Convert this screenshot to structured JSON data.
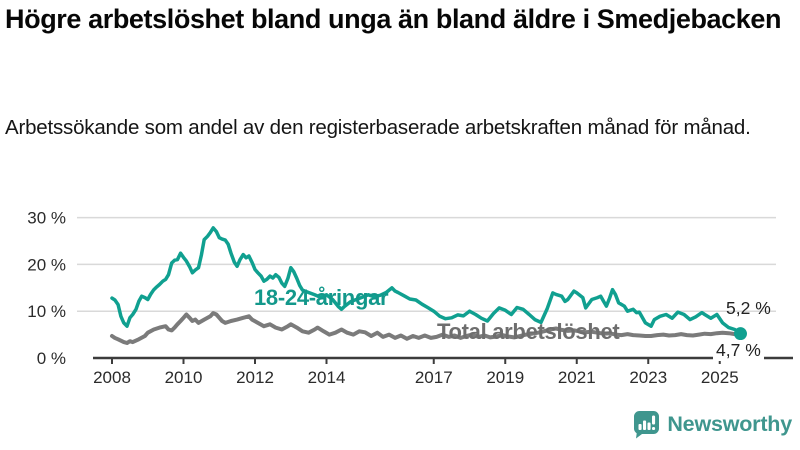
{
  "chart_data": {
    "type": "line",
    "title": "Högre arbetslöshet bland unga än bland äldre i Smedjebacken",
    "subtitle": "Arbetssökande som andel av den registerbaserade arbetskraften månad för månad.",
    "unit": "%",
    "xlim": [
      2008,
      2025.7
    ],
    "ylim": [
      0,
      30
    ],
    "grid": true,
    "legend": "inline-labels-on-chart",
    "x_ticks": [
      {
        "v": 2008,
        "label": "2008"
      },
      {
        "v": 2010,
        "label": "2010"
      },
      {
        "v": 2012,
        "label": "2012"
      },
      {
        "v": 2014,
        "label": "2014"
      },
      {
        "v": 2017,
        "label": "2017"
      },
      {
        "v": 2019,
        "label": "2019"
      },
      {
        "v": 2021,
        "label": "2021"
      },
      {
        "v": 2023,
        "label": "2023"
      },
      {
        "v": 2025,
        "label": "2025"
      }
    ],
    "y_ticks": [
      {
        "v": 0,
        "label": "0 %"
      },
      {
        "v": 10,
        "label": "10 %"
      },
      {
        "v": 20,
        "label": "20 %"
      },
      {
        "v": 30,
        "label": "30 %"
      }
    ],
    "colors": {
      "grid": "#d9d9d9",
      "axis": "#3c3c3c",
      "tick_label": "#2b2b2b"
    },
    "series": [
      {
        "name": "18-24-åringar",
        "color": "#10a090",
        "width": 3.5,
        "end_label": "5,2 %",
        "end_value": 5.2,
        "end_dot": true,
        "points": [
          [
            2008.0,
            12.8
          ],
          [
            2008.08,
            12.4
          ],
          [
            2008.17,
            11.4
          ],
          [
            2008.25,
            8.9
          ],
          [
            2008.33,
            7.5
          ],
          [
            2008.42,
            6.8
          ],
          [
            2008.5,
            8.6
          ],
          [
            2008.58,
            9.3
          ],
          [
            2008.67,
            10.4
          ],
          [
            2008.75,
            12.1
          ],
          [
            2008.83,
            13.2
          ],
          [
            2008.92,
            12.9
          ],
          [
            2009.0,
            12.5
          ],
          [
            2009.08,
            13.6
          ],
          [
            2009.17,
            14.6
          ],
          [
            2009.25,
            15.2
          ],
          [
            2009.33,
            15.7
          ],
          [
            2009.42,
            16.4
          ],
          [
            2009.5,
            16.8
          ],
          [
            2009.58,
            17.8
          ],
          [
            2009.67,
            20.3
          ],
          [
            2009.75,
            20.9
          ],
          [
            2009.83,
            21.0
          ],
          [
            2009.92,
            22.4
          ],
          [
            2010.0,
            21.5
          ],
          [
            2010.08,
            20.7
          ],
          [
            2010.17,
            19.5
          ],
          [
            2010.25,
            18.2
          ],
          [
            2010.33,
            18.8
          ],
          [
            2010.42,
            19.3
          ],
          [
            2010.5,
            22.0
          ],
          [
            2010.58,
            25.3
          ],
          [
            2010.67,
            26.0
          ],
          [
            2010.75,
            26.8
          ],
          [
            2010.83,
            27.8
          ],
          [
            2010.92,
            27.0
          ],
          [
            2011.0,
            25.7
          ],
          [
            2011.08,
            25.4
          ],
          [
            2011.17,
            25.2
          ],
          [
            2011.25,
            24.3
          ],
          [
            2011.33,
            22.4
          ],
          [
            2011.42,
            20.5
          ],
          [
            2011.5,
            19.6
          ],
          [
            2011.58,
            21.0
          ],
          [
            2011.67,
            22.1
          ],
          [
            2011.75,
            21.4
          ],
          [
            2011.83,
            21.8
          ],
          [
            2011.92,
            20.4
          ],
          [
            2012.0,
            18.9
          ],
          [
            2012.08,
            18.2
          ],
          [
            2012.17,
            17.5
          ],
          [
            2012.25,
            16.4
          ],
          [
            2012.33,
            16.8
          ],
          [
            2012.42,
            17.5
          ],
          [
            2012.5,
            17.1
          ],
          [
            2012.58,
            17.8
          ],
          [
            2012.67,
            17.2
          ],
          [
            2012.75,
            16.0
          ],
          [
            2012.83,
            15.3
          ],
          [
            2012.92,
            17.0
          ],
          [
            2013.0,
            19.3
          ],
          [
            2013.08,
            18.5
          ],
          [
            2013.17,
            17.0
          ],
          [
            2013.25,
            15.5
          ],
          [
            2013.33,
            14.5
          ],
          [
            2013.5,
            14.0
          ],
          [
            2013.67,
            13.5
          ],
          [
            2013.83,
            13.0
          ],
          [
            2014.0,
            13.5
          ],
          [
            2014.17,
            12.5
          ],
          [
            2014.33,
            11.0
          ],
          [
            2014.42,
            10.4
          ],
          [
            2014.5,
            11.0
          ],
          [
            2014.67,
            12.0
          ],
          [
            2014.83,
            12.5
          ],
          [
            2015.0,
            13.0
          ],
          [
            2015.17,
            13.5
          ],
          [
            2015.33,
            13.1
          ],
          [
            2015.5,
            13.4
          ],
          [
            2015.67,
            14.0
          ],
          [
            2015.83,
            15.0
          ],
          [
            2015.92,
            14.3
          ],
          [
            2016.0,
            14.0
          ],
          [
            2016.17,
            13.3
          ],
          [
            2016.33,
            12.6
          ],
          [
            2016.5,
            12.4
          ],
          [
            2016.67,
            11.5
          ],
          [
            2016.83,
            10.8
          ],
          [
            2017.0,
            10.0
          ],
          [
            2017.17,
            8.9
          ],
          [
            2017.33,
            8.4
          ],
          [
            2017.5,
            8.6
          ],
          [
            2017.67,
            9.2
          ],
          [
            2017.83,
            9.0
          ],
          [
            2018.0,
            10.0
          ],
          [
            2018.17,
            9.3
          ],
          [
            2018.33,
            8.5
          ],
          [
            2018.5,
            7.9
          ],
          [
            2018.67,
            9.5
          ],
          [
            2018.83,
            10.7
          ],
          [
            2019.0,
            10.2
          ],
          [
            2019.17,
            9.3
          ],
          [
            2019.33,
            10.8
          ],
          [
            2019.5,
            10.4
          ],
          [
            2019.67,
            9.3
          ],
          [
            2019.83,
            8.2
          ],
          [
            2020.0,
            7.6
          ],
          [
            2020.17,
            10.5
          ],
          [
            2020.33,
            13.9
          ],
          [
            2020.42,
            13.6
          ],
          [
            2020.58,
            13.2
          ],
          [
            2020.67,
            12.1
          ],
          [
            2020.75,
            12.5
          ],
          [
            2020.92,
            14.3
          ],
          [
            2021.0,
            13.9
          ],
          [
            2021.17,
            12.9
          ],
          [
            2021.25,
            10.7
          ],
          [
            2021.42,
            12.5
          ],
          [
            2021.58,
            12.9
          ],
          [
            2021.67,
            13.2
          ],
          [
            2021.75,
            12.1
          ],
          [
            2021.83,
            11.1
          ],
          [
            2021.92,
            12.8
          ],
          [
            2022.0,
            14.6
          ],
          [
            2022.08,
            13.6
          ],
          [
            2022.17,
            11.8
          ],
          [
            2022.33,
            11.1
          ],
          [
            2022.42,
            10.0
          ],
          [
            2022.58,
            10.4
          ],
          [
            2022.67,
            9.7
          ],
          [
            2022.75,
            9.8
          ],
          [
            2022.92,
            7.5
          ],
          [
            2023.08,
            6.8
          ],
          [
            2023.17,
            8.2
          ],
          [
            2023.33,
            8.9
          ],
          [
            2023.5,
            9.3
          ],
          [
            2023.67,
            8.5
          ],
          [
            2023.83,
            9.8
          ],
          [
            2024.0,
            9.3
          ],
          [
            2024.17,
            8.2
          ],
          [
            2024.33,
            8.8
          ],
          [
            2024.5,
            9.7
          ],
          [
            2024.58,
            9.3
          ],
          [
            2024.75,
            8.5
          ],
          [
            2024.92,
            9.3
          ],
          [
            2025.08,
            7.5
          ],
          [
            2025.25,
            6.5
          ],
          [
            2025.42,
            6.1
          ],
          [
            2025.58,
            5.2
          ]
        ]
      },
      {
        "name": "Total arbetslöshet",
        "color": "#7b7b7b",
        "width": 4,
        "end_label": "4,7 %",
        "end_value": 4.7,
        "end_dot": false,
        "points": [
          [
            2008.0,
            4.7
          ],
          [
            2008.08,
            4.3
          ],
          [
            2008.17,
            4.0
          ],
          [
            2008.33,
            3.4
          ],
          [
            2008.42,
            3.2
          ],
          [
            2008.5,
            3.6
          ],
          [
            2008.58,
            3.4
          ],
          [
            2008.75,
            4.0
          ],
          [
            2008.92,
            4.7
          ],
          [
            2009.0,
            5.4
          ],
          [
            2009.17,
            6.1
          ],
          [
            2009.33,
            6.5
          ],
          [
            2009.5,
            6.8
          ],
          [
            2009.58,
            6.1
          ],
          [
            2009.67,
            5.9
          ],
          [
            2009.75,
            6.5
          ],
          [
            2009.83,
            7.2
          ],
          [
            2009.92,
            7.9
          ],
          [
            2010.0,
            8.6
          ],
          [
            2010.08,
            9.3
          ],
          [
            2010.17,
            8.6
          ],
          [
            2010.25,
            7.9
          ],
          [
            2010.33,
            8.2
          ],
          [
            2010.42,
            7.5
          ],
          [
            2010.58,
            8.2
          ],
          [
            2010.75,
            8.9
          ],
          [
            2010.83,
            9.6
          ],
          [
            2010.92,
            9.3
          ],
          [
            2011.0,
            8.6
          ],
          [
            2011.08,
            7.9
          ],
          [
            2011.17,
            7.5
          ],
          [
            2011.33,
            7.9
          ],
          [
            2011.5,
            8.2
          ],
          [
            2011.67,
            8.6
          ],
          [
            2011.83,
            8.9
          ],
          [
            2011.92,
            8.2
          ],
          [
            2012.08,
            7.5
          ],
          [
            2012.25,
            6.8
          ],
          [
            2012.42,
            7.2
          ],
          [
            2012.58,
            6.5
          ],
          [
            2012.75,
            6.1
          ],
          [
            2012.92,
            6.8
          ],
          [
            2013.0,
            7.2
          ],
          [
            2013.17,
            6.5
          ],
          [
            2013.33,
            5.7
          ],
          [
            2013.5,
            5.4
          ],
          [
            2013.67,
            6.1
          ],
          [
            2013.75,
            6.5
          ],
          [
            2013.92,
            5.7
          ],
          [
            2014.08,
            5.0
          ],
          [
            2014.25,
            5.4
          ],
          [
            2014.42,
            6.1
          ],
          [
            2014.58,
            5.4
          ],
          [
            2014.75,
            5.0
          ],
          [
            2014.92,
            5.7
          ],
          [
            2015.08,
            5.5
          ],
          [
            2015.25,
            4.7
          ],
          [
            2015.42,
            5.4
          ],
          [
            2015.58,
            4.5
          ],
          [
            2015.75,
            5.0
          ],
          [
            2015.92,
            4.3
          ],
          [
            2016.08,
            4.8
          ],
          [
            2016.25,
            4.1
          ],
          [
            2016.42,
            4.7
          ],
          [
            2016.58,
            4.3
          ],
          [
            2016.75,
            4.8
          ],
          [
            2016.92,
            4.3
          ],
          [
            2017.08,
            4.5
          ],
          [
            2017.25,
            5.0
          ],
          [
            2017.42,
            4.5
          ],
          [
            2017.58,
            4.8
          ],
          [
            2017.75,
            4.3
          ],
          [
            2017.92,
            4.7
          ],
          [
            2018.08,
            5.0
          ],
          [
            2018.25,
            4.5
          ],
          [
            2018.42,
            4.8
          ],
          [
            2018.58,
            4.4
          ],
          [
            2018.75,
            4.6
          ],
          [
            2018.92,
            4.9
          ],
          [
            2019.08,
            4.6
          ],
          [
            2019.25,
            4.4
          ],
          [
            2019.42,
            4.7
          ],
          [
            2019.58,
            5.0
          ],
          [
            2019.75,
            5.2
          ],
          [
            2019.92,
            5.4
          ],
          [
            2020.08,
            5.7
          ],
          [
            2020.25,
            6.1
          ],
          [
            2020.42,
            6.3
          ],
          [
            2020.58,
            6.0
          ],
          [
            2020.75,
            5.8
          ],
          [
            2020.92,
            5.9
          ],
          [
            2021.08,
            5.7
          ],
          [
            2021.25,
            5.5
          ],
          [
            2021.42,
            5.6
          ],
          [
            2021.58,
            5.4
          ],
          [
            2021.75,
            5.2
          ],
          [
            2021.92,
            5.3
          ],
          [
            2022.08,
            5.0
          ],
          [
            2022.25,
            4.9
          ],
          [
            2022.42,
            5.1
          ],
          [
            2022.58,
            4.9
          ],
          [
            2022.75,
            4.8
          ],
          [
            2022.92,
            4.7
          ],
          [
            2023.08,
            4.7
          ],
          [
            2023.25,
            4.9
          ],
          [
            2023.42,
            5.0
          ],
          [
            2023.58,
            4.8
          ],
          [
            2023.75,
            4.9
          ],
          [
            2023.92,
            5.1
          ],
          [
            2024.08,
            4.9
          ],
          [
            2024.25,
            4.8
          ],
          [
            2024.42,
            5.0
          ],
          [
            2024.58,
            5.2
          ],
          [
            2024.75,
            5.1
          ],
          [
            2024.92,
            5.3
          ],
          [
            2025.08,
            5.4
          ],
          [
            2025.25,
            5.3
          ],
          [
            2025.42,
            5.1
          ],
          [
            2025.58,
            4.7
          ]
        ]
      }
    ]
  },
  "footer": {
    "brand": "Newsworthy",
    "brand_color": "#3f968e"
  }
}
